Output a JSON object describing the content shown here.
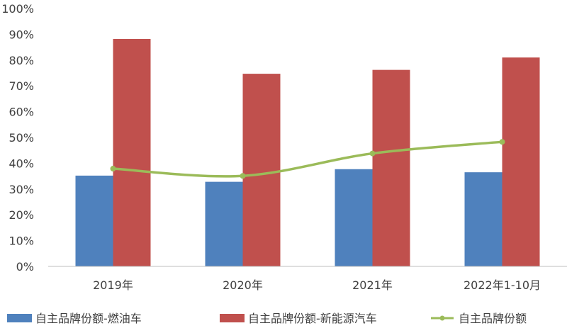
{
  "chart_data": {
    "type": "bar",
    "categories": [
      "2019年",
      "2020年",
      "2021年",
      "2022年1-10月"
    ],
    "series": [
      {
        "name": "自主品牌份额-燃油车",
        "kind": "bar",
        "color": "#4F81BD",
        "values": [
          35.2,
          32.8,
          37.7,
          36.5
        ]
      },
      {
        "name": "自主品牌份额-新能源汽车",
        "kind": "bar",
        "color": "#C0504D",
        "values": [
          88.2,
          74.7,
          76.2,
          81.0
        ]
      },
      {
        "name": "自主品牌份额",
        "kind": "line",
        "color": "#9BBB59",
        "values": [
          37.9,
          35.1,
          43.8,
          48.3
        ]
      }
    ],
    "yticks": [
      "0%",
      "10%",
      "20%",
      "30%",
      "40%",
      "50%",
      "60%",
      "70%",
      "80%",
      "90%",
      "100%"
    ],
    "ylim": [
      0,
      100
    ],
    "grid": false,
    "legend_position": "bottom"
  }
}
